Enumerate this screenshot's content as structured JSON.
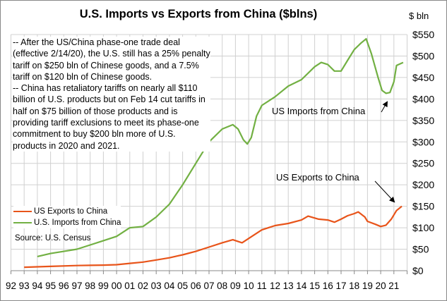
{
  "chart_data": {
    "type": "line",
    "title": "U.S. Imports vs Exports from China ($blns)",
    "ylabel": "$ bln",
    "ylim": [
      0,
      550
    ],
    "yticks": [
      "$0",
      "$50",
      "$100",
      "$150",
      "$200",
      "$250",
      "$300",
      "$350",
      "$400",
      "$450",
      "$500",
      "$550"
    ],
    "xlim": [
      1992,
      2022
    ],
    "xticks": [
      "92",
      "93",
      "94",
      "95",
      "96",
      "97",
      "98",
      "99",
      "00",
      "01",
      "02",
      "03",
      "04",
      "05",
      "06",
      "07",
      "08",
      "09",
      "10",
      "11",
      "12",
      "13",
      "14",
      "15",
      "16",
      "17",
      "18",
      "19",
      "20",
      "21"
    ],
    "grid": true,
    "legend_placement": "bottom-left",
    "series": [
      {
        "name": "US Exports to China",
        "color": "#e8541a",
        "x": [
          1993,
          1995,
          1997,
          1999,
          2000,
          2001,
          2002,
          2003,
          2004,
          2005,
          2006,
          2007,
          2008,
          2008.8,
          2009.5,
          2010,
          2011,
          2012,
          2013,
          2014,
          2014.5,
          2015.3,
          2016,
          2016.5,
          2017,
          2017.5,
          2018,
          2018.3,
          2018.8,
          2019,
          2019.6,
          2020,
          2020.4,
          2020.8,
          2021.2,
          2021.6
        ],
        "y": [
          8,
          10,
          12,
          13,
          14,
          17,
          20,
          25,
          30,
          37,
          45,
          55,
          65,
          72,
          65,
          75,
          95,
          105,
          110,
          118,
          127,
          120,
          118,
          113,
          120,
          128,
          133,
          137,
          125,
          115,
          108,
          103,
          106,
          120,
          140,
          150
        ]
      },
      {
        "name": "U.S. Imports from China",
        "color": "#72b043",
        "x": [
          1994,
          1995,
          1996,
          1997,
          1998,
          1999,
          2000,
          2001,
          2002,
          2003,
          2004,
          2005,
          2006,
          2007,
          2008,
          2008.8,
          2009.2,
          2009.6,
          2009.9,
          2010.2,
          2010.6,
          2011,
          2012,
          2013,
          2014,
          2015,
          2015.5,
          2016,
          2016.5,
          2017,
          2017.5,
          2018,
          2018.5,
          2018.9,
          2019.3,
          2019.8,
          2020.1,
          2020.4,
          2020.7,
          2021,
          2021.2,
          2021.7
        ],
        "y": [
          33,
          40,
          45,
          50,
          60,
          70,
          80,
          100,
          103,
          125,
          155,
          200,
          250,
          300,
          330,
          340,
          330,
          305,
          295,
          310,
          360,
          385,
          405,
          430,
          445,
          475,
          485,
          480,
          465,
          465,
          490,
          515,
          530,
          540,
          505,
          450,
          420,
          413,
          415,
          440,
          478,
          485
        ]
      }
    ],
    "annotations": [
      {
        "text": "US Imports  from China"
      },
      {
        "text": "US Exports to China"
      }
    ],
    "note": "-- After the US/China phase-one trade deal (effective 2/14/20), the U.S. still has a 25% penalty tariff on $250  bln of Chinese goods, and a 7.5% tariff on $120  bln of Chinese goods.\n-- China has retaliatory tariffs on nearly all $110 billion of U.S. products but on Feb 14 cut tariffs in half on $75  billion of those products and is providing tariff exclusions to meet its phase-one commitment to buy $200  bln more of U.S. products in 2020  and 2021.",
    "source": "Source:  U.S. Census"
  }
}
